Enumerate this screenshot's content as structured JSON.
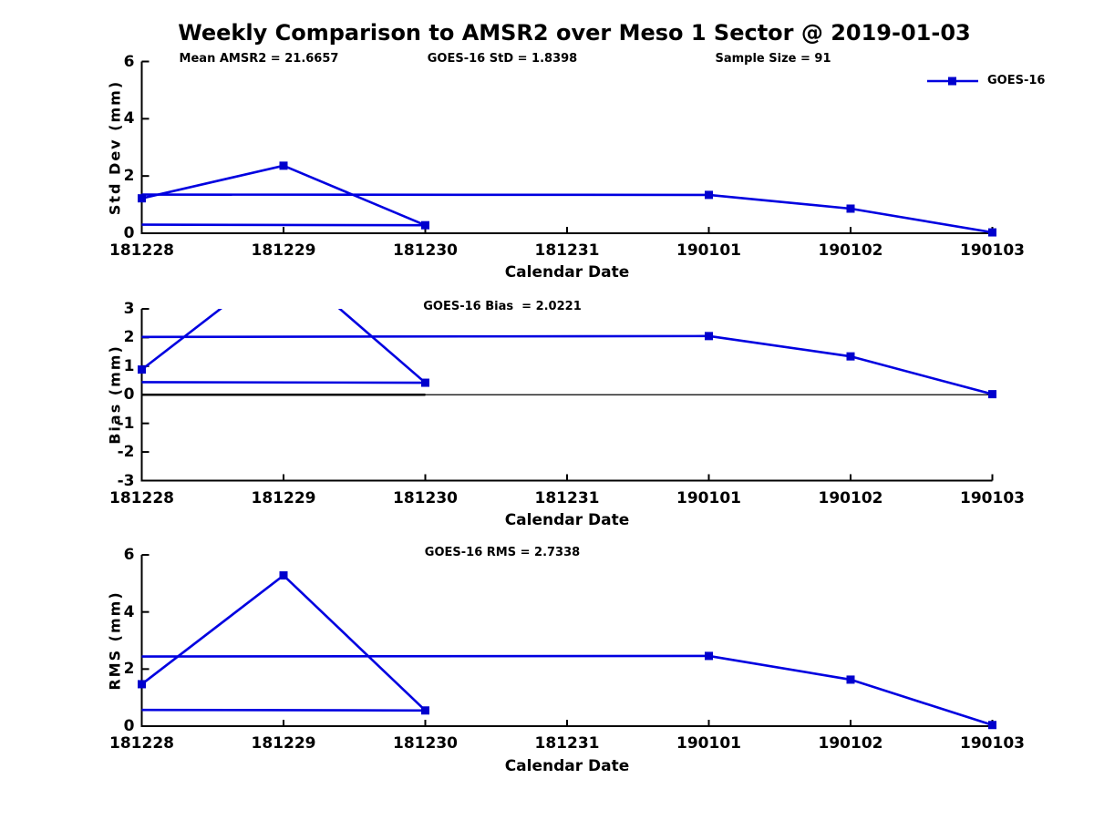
{
  "figure": {
    "title": "Weekly Comparison to AMSR2 over Meso 1 Sector @ 2019-01-03",
    "annotations": [
      {
        "text": "Mean AMSR2 = 21.6657"
      },
      {
        "text": "GOES-16 StD = 1.8398"
      },
      {
        "text": "Sample Size = 91"
      }
    ],
    "legend": {
      "label": "GOES-16",
      "position": "top-right"
    },
    "colors": {
      "line": "#0000e0",
      "marker": "#0000cd",
      "axis": "#000000",
      "zero_line": "#000000",
      "background": "#ffffff",
      "text": "#000000"
    }
  },
  "chart_data": [
    {
      "type": "line",
      "id": "std-dev",
      "title": "",
      "ylabel": "Std Dev (mm)",
      "xlabel": "Calendar Date",
      "categories": [
        "181228",
        "181229",
        "181230",
        "181231",
        "190101",
        "190102",
        "190103"
      ],
      "ylim": [
        0,
        6
      ],
      "yticks": [
        0,
        2,
        4,
        6
      ],
      "grid": false,
      "zero_line": null,
      "series": [
        {
          "name": "GOES-16",
          "values_by_date": {
            "181228": 1.22,
            "181229": 2.36,
            "181230": 0.28,
            "181231": null,
            "190101": 1.34,
            "190102": 0.86,
            "190103": 0.03
          },
          "marker_points": [
            [
              0,
              1.22
            ],
            [
              1,
              2.36
            ],
            [
              2,
              0.28
            ],
            [
              4,
              1.34
            ],
            [
              5,
              0.86
            ],
            [
              6,
              0.03
            ]
          ],
          "line_segments": [
            [
              [
                0,
                1.22
              ],
              [
                1,
                2.36
              ],
              [
                2,
                0.28
              ]
            ],
            [
              [
                2,
                0.28
              ],
              [
                0,
                0.3
              ]
            ],
            [
              [
                0,
                1.35
              ],
              [
                4,
                1.34
              ],
              [
                5,
                0.86
              ],
              [
                6,
                0.03
              ]
            ]
          ]
        }
      ]
    },
    {
      "type": "line",
      "id": "bias",
      "title": "GOES-16 Bias  = 2.0221",
      "ylabel": "Bias (mm)",
      "xlabel": "Calendar Date",
      "categories": [
        "181228",
        "181229",
        "181230",
        "181231",
        "190101",
        "190102",
        "190103"
      ],
      "ylim": [
        -3,
        3
      ],
      "yticks": [
        3,
        2,
        1,
        0,
        -1,
        -2,
        -3
      ],
      "grid": false,
      "zero_line": {
        "full_width": true,
        "thick_span_days": [
          0,
          2
        ]
      },
      "series": [
        {
          "name": "GOES-16",
          "values_by_date": {
            "181228": 0.88,
            "181229": 4.7,
            "181230": 0.42,
            "181231": null,
            "190101": 2.05,
            "190102": 1.34,
            "190103": 0.02
          },
          "peak_clipped_above_ylim": true,
          "marker_points": [
            [
              0,
              0.88
            ],
            [
              2,
              0.42
            ],
            [
              4,
              2.05
            ],
            [
              5,
              1.34
            ],
            [
              6,
              0.02
            ]
          ],
          "line_segments": [
            [
              [
                0,
                0.88
              ],
              [
                1,
                4.7
              ],
              [
                2,
                0.42
              ]
            ],
            [
              [
                2,
                0.42
              ],
              [
                0,
                0.44
              ]
            ],
            [
              [
                0,
                2.02
              ],
              [
                4,
                2.05
              ],
              [
                5,
                1.34
              ],
              [
                6,
                0.02
              ]
            ]
          ]
        }
      ]
    },
    {
      "type": "line",
      "id": "rms",
      "title": "GOES-16 RMS = 2.7338",
      "ylabel": "RMS (mm)",
      "xlabel": "Calendar Date",
      "categories": [
        "181228",
        "181229",
        "181230",
        "181231",
        "190101",
        "190102",
        "190103"
      ],
      "ylim": [
        0,
        6
      ],
      "yticks": [
        0,
        2,
        4,
        6
      ],
      "grid": false,
      "zero_line": null,
      "series": [
        {
          "name": "GOES-16",
          "values_by_date": {
            "181228": 1.47,
            "181229": 5.28,
            "181230": 0.55,
            "181231": null,
            "190101": 2.46,
            "190102": 1.63,
            "190103": 0.04
          },
          "marker_points": [
            [
              0,
              1.47
            ],
            [
              1,
              5.28
            ],
            [
              2,
              0.55
            ],
            [
              4,
              2.46
            ],
            [
              5,
              1.63
            ],
            [
              6,
              0.04
            ]
          ],
          "line_segments": [
            [
              [
                0,
                1.47
              ],
              [
                1,
                5.28
              ],
              [
                2,
                0.55
              ]
            ],
            [
              [
                2,
                0.55
              ],
              [
                0,
                0.57
              ]
            ],
            [
              [
                0,
                2.44
              ],
              [
                4,
                2.46
              ],
              [
                5,
                1.63
              ],
              [
                6,
                0.04
              ]
            ]
          ]
        }
      ]
    }
  ]
}
